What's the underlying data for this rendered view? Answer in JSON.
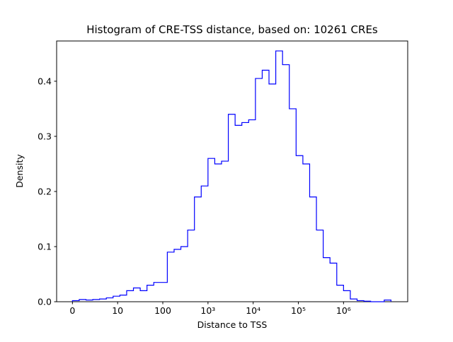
{
  "chart_data": {
    "type": "bar",
    "subtype": "step-histogram",
    "title": "Histogram of CRE-TSS distance, based on: 10261 CREs",
    "xlabel": "Distance to TSS",
    "ylabel": "Density",
    "line_color": "#0000ff",
    "xlim": [
      -0.35,
      7.42
    ],
    "ylim": [
      0,
      0.473
    ],
    "grid": false,
    "legend": "none",
    "x_ticks": [
      {
        "pos": 0,
        "label": "0"
      },
      {
        "pos": 1,
        "label": "10"
      },
      {
        "pos": 2,
        "label": "100"
      },
      {
        "pos": 3,
        "label": "10³"
      },
      {
        "pos": 4,
        "label": "10⁴"
      },
      {
        "pos": 5,
        "label": "10⁵"
      },
      {
        "pos": 6,
        "label": "10⁶"
      }
    ],
    "y_ticks": [
      {
        "pos": 0.0,
        "label": "0.0"
      },
      {
        "pos": 0.1,
        "label": "0.1"
      },
      {
        "pos": 0.2,
        "label": "0.2"
      },
      {
        "pos": 0.3,
        "label": "0.3"
      },
      {
        "pos": 0.4,
        "label": "0.4"
      }
    ],
    "bin_start": 0,
    "bin_width": 0.15,
    "densities": [
      0.002,
      0.004,
      0.003,
      0.004,
      0.005,
      0.007,
      0.01,
      0.012,
      0.02,
      0.025,
      0.02,
      0.03,
      0.035,
      0.035,
      0.09,
      0.095,
      0.1,
      0.13,
      0.19,
      0.21,
      0.26,
      0.25,
      0.255,
      0.34,
      0.32,
      0.325,
      0.33,
      0.405,
      0.42,
      0.395,
      0.455,
      0.43,
      0.35,
      0.265,
      0.25,
      0.19,
      0.13,
      0.08,
      0.07,
      0.03,
      0.02,
      0.005,
      0.002,
      0.001,
      0.0,
      0.0,
      0.003
    ]
  }
}
